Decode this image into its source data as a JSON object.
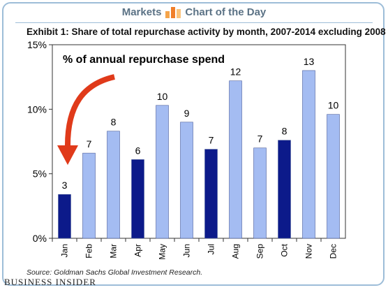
{
  "header": {
    "section": "Markets",
    "title": "Chart of the Day"
  },
  "exhibit_title": "Exhibit 1: Share of total repurchase activity by month, 2007-2014 excluding 2008",
  "source": "Source: Goldman Sachs Global Investment Research.",
  "publisher": "BUSINESS INSIDER",
  "colors": {
    "light_bar": "#a4bcf2",
    "dark_bar": "#0c1a8a",
    "arrow": "#e03a1a",
    "border": "#9dbdd8"
  },
  "chart_data": {
    "type": "bar",
    "annotation": "% of annual repurchase spend",
    "categories": [
      "Jan",
      "Feb",
      "Mar",
      "Apr",
      "May",
      "Jun",
      "Jul",
      "Aug",
      "Sep",
      "Oct",
      "Nov",
      "Dec"
    ],
    "values": [
      3.4,
      6.6,
      8.3,
      6.1,
      10.3,
      9.0,
      6.9,
      12.2,
      7.0,
      7.6,
      13.0,
      9.6
    ],
    "data_labels": [
      "3",
      "7",
      "8",
      "6",
      "10",
      "9",
      "7",
      "12",
      "7",
      "8",
      "13",
      "10"
    ],
    "highlighted": [
      "Jan",
      "Apr",
      "Jul",
      "Oct"
    ],
    "ylim": [
      0,
      15
    ],
    "yticks": [
      0,
      5,
      10,
      15
    ],
    "ytick_labels": [
      "0%",
      "5%",
      "10%",
      "15%"
    ],
    "grid": false
  }
}
